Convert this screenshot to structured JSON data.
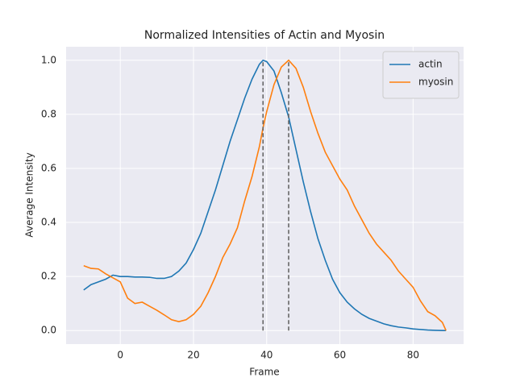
{
  "chart_data": {
    "type": "line",
    "title": "Normalized Intensities of Actin and Myosin",
    "x_label": "Frame",
    "y_label": "Average Intensity",
    "x": [
      -10,
      -8,
      -6,
      -4,
      -2,
      0,
      2,
      4,
      6,
      8,
      10,
      12,
      14,
      16,
      18,
      20,
      22,
      24,
      26,
      28,
      30,
      32,
      34,
      36,
      38,
      39,
      40,
      42,
      44,
      46,
      48,
      50,
      52,
      54,
      56,
      58,
      60,
      62,
      64,
      66,
      68,
      70,
      72,
      74,
      76,
      78,
      80,
      82,
      84,
      86,
      88,
      89
    ],
    "series": [
      {
        "name": "actin",
        "color": "#1f77b4",
        "values": [
          0.15,
          0.17,
          0.18,
          0.19,
          0.205,
          0.2,
          0.2,
          0.198,
          0.198,
          0.197,
          0.193,
          0.193,
          0.2,
          0.22,
          0.25,
          0.3,
          0.36,
          0.44,
          0.52,
          0.61,
          0.7,
          0.78,
          0.86,
          0.93,
          0.985,
          1.0,
          0.995,
          0.96,
          0.88,
          0.79,
          0.67,
          0.55,
          0.44,
          0.34,
          0.26,
          0.19,
          0.14,
          0.105,
          0.08,
          0.06,
          0.045,
          0.035,
          0.025,
          0.018,
          0.013,
          0.01,
          0.006,
          0.004,
          0.002,
          0.001,
          0.0,
          0.0
        ]
      },
      {
        "name": "myosin",
        "color": "#ff7f0e",
        "values": [
          0.24,
          0.23,
          0.228,
          0.21,
          0.195,
          0.18,
          0.12,
          0.1,
          0.105,
          0.09,
          0.075,
          0.058,
          0.04,
          0.033,
          0.04,
          0.06,
          0.09,
          0.14,
          0.2,
          0.27,
          0.32,
          0.38,
          0.48,
          0.57,
          0.68,
          0.75,
          0.81,
          0.91,
          0.975,
          1.0,
          0.97,
          0.9,
          0.81,
          0.73,
          0.66,
          0.61,
          0.56,
          0.52,
          0.46,
          0.41,
          0.36,
          0.32,
          0.29,
          0.26,
          0.22,
          0.19,
          0.16,
          0.11,
          0.07,
          0.055,
          0.03,
          0.0
        ]
      }
    ],
    "vlines": [
      {
        "x": 39,
        "ymin": 0,
        "ymax": 1
      },
      {
        "x": 46,
        "ymin": 0,
        "ymax": 1
      }
    ],
    "vline_color": "#666666",
    "xlim": [
      -14.8,
      93.8
    ],
    "ylim": [
      -0.05,
      1.05
    ],
    "xticks": [
      0,
      20,
      40,
      60,
      80
    ],
    "yticks": [
      {
        "value": 0,
        "label": "0.0"
      },
      0.2,
      0.4,
      0.6,
      0.8,
      {
        "value": 1,
        "label": "1.0"
      }
    ],
    "grid": true,
    "legend": "upper right"
  }
}
